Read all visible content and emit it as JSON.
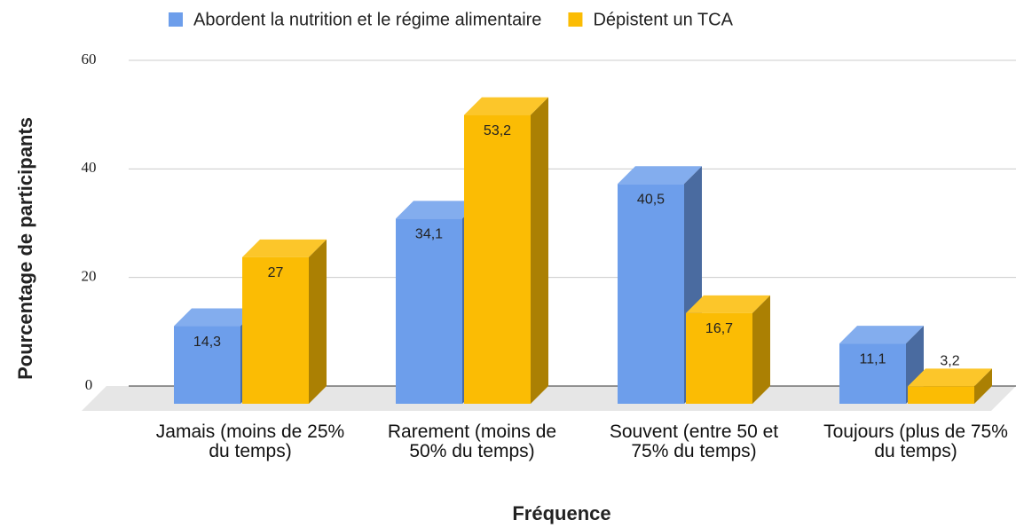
{
  "chart_data": {
    "type": "bar3d",
    "x_label": "Fréquence",
    "y_label": "Pourcentage de participants",
    "categories": [
      "Jamais (moins de 25% du temps)",
      "Rarement (moins de 50% du temps)",
      "Souvent (entre 50 et 75% du temps)",
      "Toujours (plus de 75% du temps)"
    ],
    "series": [
      {
        "name": "Abordent la nutrition et le régime alimentaire",
        "color": "#6d9eeb",
        "values": [
          14.3,
          34.1,
          40.5,
          11.1
        ],
        "value_labels": [
          "14,3",
          "34,1",
          "40,5",
          "11,1"
        ]
      },
      {
        "name": "Dépistent un TCA",
        "color": "#fbbc04",
        "values": [
          27,
          53.2,
          16.7,
          3.2
        ],
        "value_labels": [
          "27",
          "53,2",
          "16,7",
          "3,2"
        ]
      }
    ],
    "ylim": [
      0,
      60
    ],
    "yticks": [
      0,
      20,
      40,
      60
    ],
    "grid": true,
    "legend": "top"
  }
}
